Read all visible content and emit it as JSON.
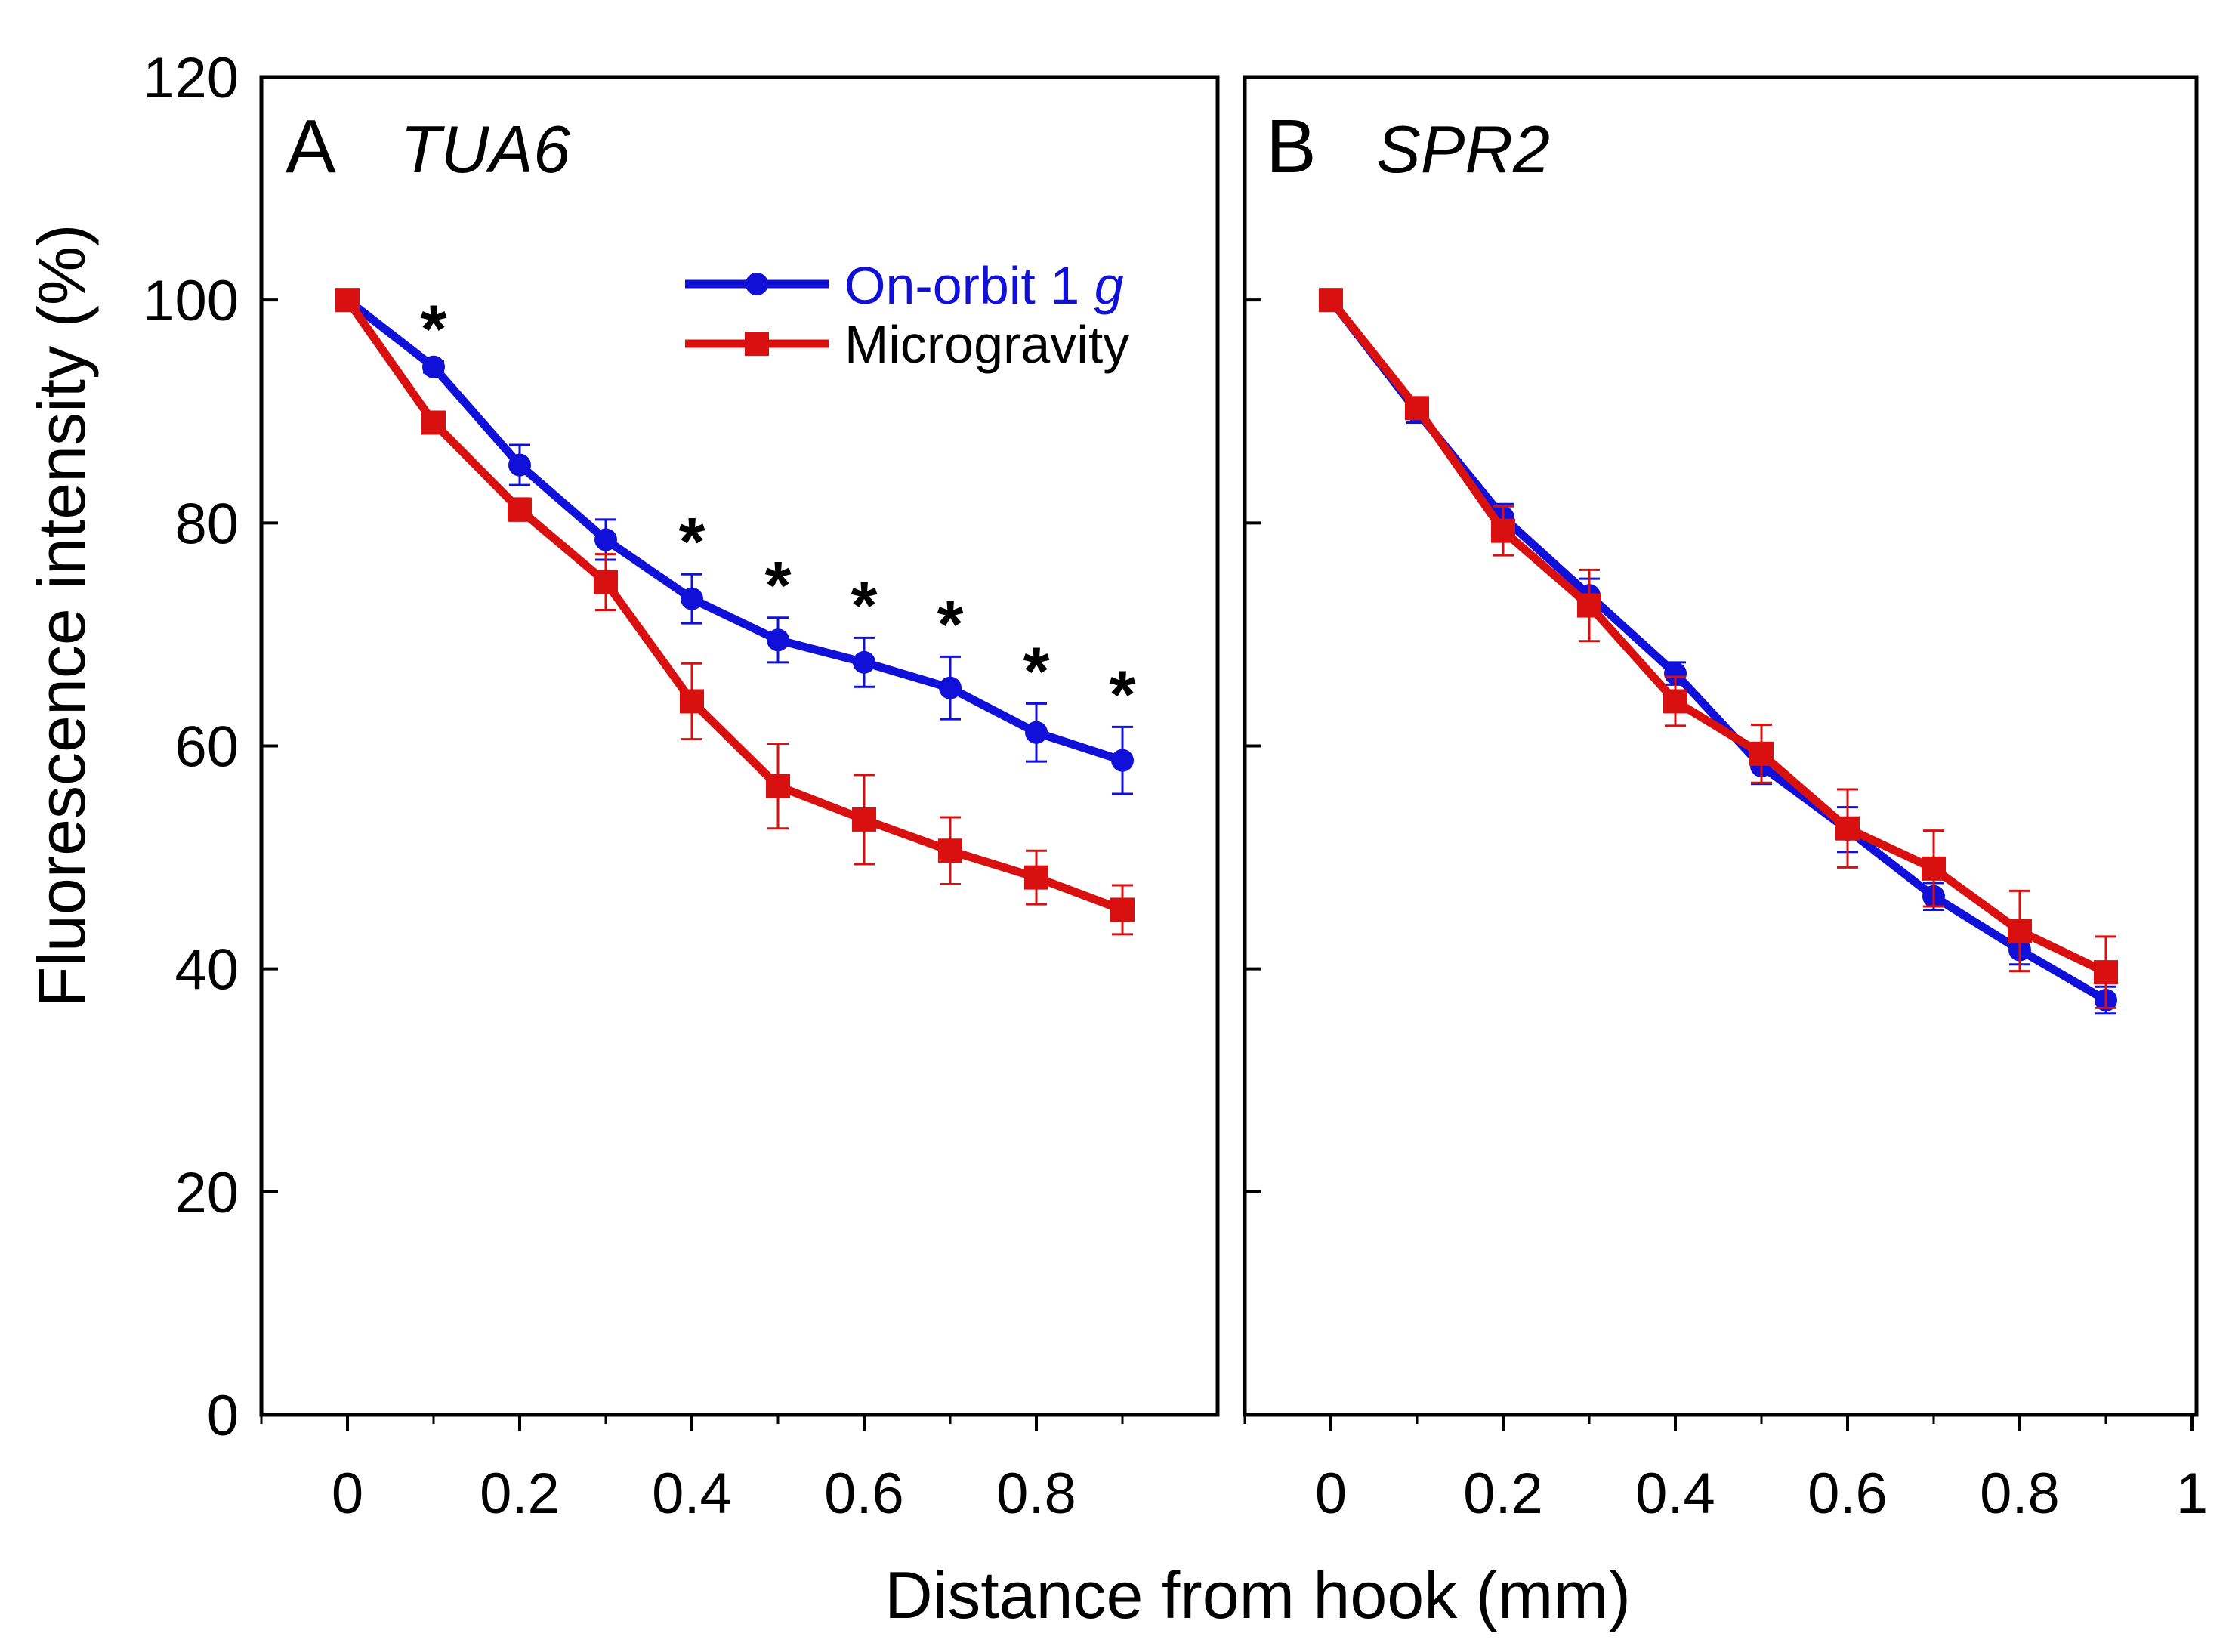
{
  "figure": {
    "xlabel": "Distance from hook (mm)",
    "ylabel": "Fluorescence intensity (%)",
    "ylim": [
      0,
      120
    ],
    "yticks": [
      "0",
      "20",
      "40",
      "60",
      "80",
      "100",
      "120"
    ],
    "xticks_a": [
      "0",
      "0.2",
      "0.4",
      "0.6",
      "0.8"
    ],
    "xticks_b": [
      "0",
      "0.2",
      "0.4",
      "0.6",
      "0.8",
      "1"
    ],
    "legend": {
      "series1_name": "On-orbit 1 ",
      "series1_italic": "g",
      "series2_name": "Microgravity"
    },
    "colors": {
      "on_orbit": "#1010d8",
      "microgravity": "#d81010"
    }
  },
  "chart_data": [
    {
      "type": "line",
      "panel_letter": "A",
      "gene": "TUA6",
      "title": "A TUA6",
      "xlabel": "Distance from hook (mm)",
      "ylabel": "Fluorescence intensity (%)",
      "xlim": [
        -0.1,
        1.0
      ],
      "ylim": [
        0,
        120
      ],
      "x": [
        0,
        0.1,
        0.2,
        0.3,
        0.4,
        0.5,
        0.6,
        0.7,
        0.8,
        0.9
      ],
      "series": [
        {
          "name": "On-orbit 1 g",
          "marker": "circle",
          "values": [
            100,
            94,
            85.2,
            78.5,
            73.2,
            69.5,
            67.5,
            65.2,
            61.2,
            58.7
          ],
          "errors": [
            0,
            0.5,
            1.8,
            1.8,
            2.2,
            2.0,
            2.2,
            2.8,
            2.6,
            3.0
          ]
        },
        {
          "name": "Microgravity",
          "marker": "square",
          "values": [
            100,
            89,
            81.2,
            74.7,
            64.0,
            56.4,
            53.4,
            50.6,
            48.2,
            45.3
          ],
          "errors": [
            0,
            0.5,
            1.0,
            2.5,
            3.4,
            3.8,
            4.0,
            3.0,
            2.4,
            2.2
          ]
        }
      ],
      "significance": [
        {
          "x": 0.1,
          "label": "*"
        },
        {
          "x": 0.4,
          "label": "*"
        },
        {
          "x": 0.5,
          "label": "*"
        },
        {
          "x": 0.6,
          "label": "*"
        },
        {
          "x": 0.7,
          "label": "*"
        },
        {
          "x": 0.8,
          "label": "*"
        },
        {
          "x": 0.9,
          "label": "*"
        }
      ],
      "legend": "top-right"
    },
    {
      "type": "line",
      "panel_letter": "B",
      "gene": "SPR2",
      "title": "B SPR2",
      "xlabel": "Distance from hook (mm)",
      "ylabel": "Fluorescence intensity (%)",
      "xlim": [
        -0.1,
        1.0
      ],
      "ylim": [
        0,
        120
      ],
      "x": [
        0,
        0.1,
        0.2,
        0.3,
        0.4,
        0.5,
        0.6,
        0.7,
        0.8,
        0.9
      ],
      "series": [
        {
          "name": "On-orbit 1 g",
          "marker": "circle",
          "values": [
            100,
            90,
            80.5,
            73.5,
            66.5,
            58.2,
            52.5,
            46.5,
            41.7,
            37.2
          ],
          "errors": [
            0,
            1.0,
            1.2,
            1.5,
            1.0,
            1.6,
            2.0,
            1.2,
            1.3,
            1.2
          ]
        },
        {
          "name": "Microgravity",
          "marker": "square",
          "values": [
            100,
            90.3,
            79.3,
            72.6,
            64.0,
            59.3,
            52.6,
            49.0,
            43.4,
            39.7
          ],
          "errors": [
            0,
            0.8,
            2.2,
            3.2,
            2.2,
            2.6,
            3.5,
            3.4,
            3.6,
            3.2
          ]
        }
      ]
    }
  ]
}
